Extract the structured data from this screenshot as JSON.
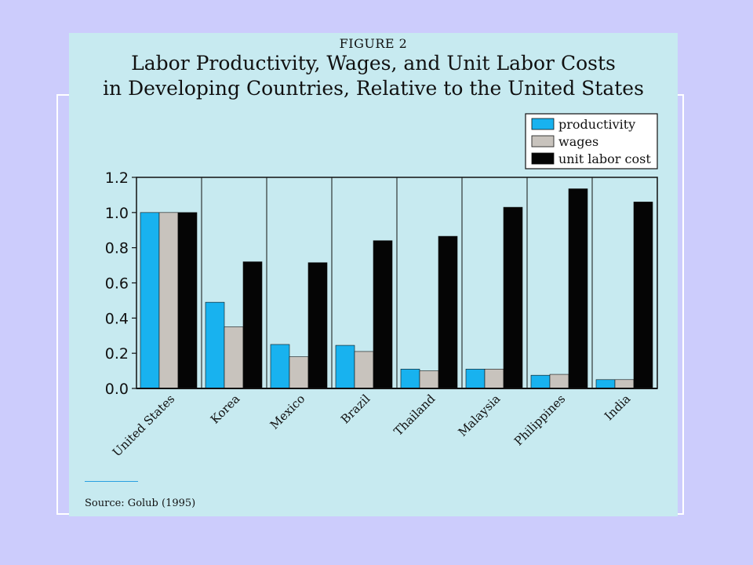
{
  "figure_label": "FIGURE 2",
  "title_lines": [
    "Labor Productivity, Wages, and Unit Labor Costs",
    "in Developing Countries, Relative to the United States"
  ],
  "source": "Source: Golub (1995)",
  "colors": {
    "page_background": "#ccccfc",
    "panel_background": "#c7eaf0",
    "productivity": "#18b2ef",
    "wages": "#c8c3bd",
    "unit_labor_cost": "#050505"
  },
  "chart_data": {
    "type": "bar",
    "categories": [
      "United States",
      "Korea",
      "Mexico",
      "Brazil",
      "Thailand",
      "Malaysia",
      "Philippines",
      "India"
    ],
    "series": [
      {
        "name": "productivity",
        "color": "#18b2ef",
        "values": [
          1.0,
          0.49,
          0.25,
          0.245,
          0.11,
          0.11,
          0.075,
          0.05
        ]
      },
      {
        "name": "wages",
        "color": "#c8c3bd",
        "values": [
          1.0,
          0.35,
          0.18,
          0.21,
          0.1,
          0.11,
          0.08,
          0.05
        ]
      },
      {
        "name": "unit labor cost",
        "color": "#050505",
        "values": [
          1.0,
          0.72,
          0.715,
          0.84,
          0.865,
          1.03,
          1.135,
          1.06
        ]
      }
    ],
    "yticks": [
      "0.0",
      "0.2",
      "0.4",
      "0.6",
      "0.8",
      "1.0",
      "1.2"
    ],
    "ylim": [
      0,
      1.2
    ],
    "grid": "vertical category separators",
    "legend_position": "top-right"
  }
}
